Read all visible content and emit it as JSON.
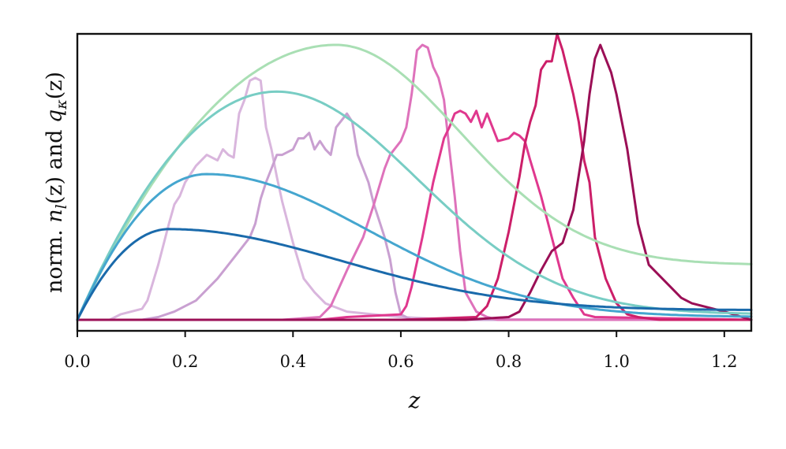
{
  "chart_data": {
    "type": "line",
    "title": "",
    "xlabel": "z",
    "ylabel": "norm. n_l(z) and q_κ(z)",
    "ylabel_parts": [
      "norm. ",
      "n",
      "l",
      "(z) and ",
      "q",
      "κ",
      "(z)"
    ],
    "xlim": [
      0.0,
      1.25
    ],
    "ylim": [
      -0.04,
      1.04
    ],
    "xticks": [
      0.0,
      0.2,
      0.4,
      0.6,
      0.8,
      1.0,
      1.2
    ],
    "xtick_labels": [
      "0.0",
      "0.2",
      "0.4",
      "0.6",
      "0.8",
      "1.0",
      "1.2"
    ],
    "yticks_visible": false,
    "grid": false,
    "legend": "none",
    "series": [
      {
        "kind": "lens",
        "color": "#d9b6dd",
        "x": [
          0,
          0.06,
          0.08,
          0.1,
          0.12,
          0.13,
          0.15,
          0.17,
          0.18,
          0.19,
          0.2,
          0.22,
          0.23,
          0.24,
          0.26,
          0.27,
          0.28,
          0.29,
          0.3,
          0.31,
          0.32,
          0.33,
          0.34,
          0.35,
          0.36,
          0.37,
          0.38,
          0.4,
          0.42,
          0.44,
          0.46,
          0.5,
          0.55,
          0.6,
          0.65,
          0.7,
          1.25
        ],
        "y": [
          0,
          0,
          0.02,
          0.03,
          0.04,
          0.07,
          0.2,
          0.35,
          0.42,
          0.45,
          0.5,
          0.56,
          0.58,
          0.6,
          0.58,
          0.62,
          0.6,
          0.59,
          0.75,
          0.8,
          0.87,
          0.88,
          0.87,
          0.7,
          0.62,
          0.52,
          0.43,
          0.28,
          0.15,
          0.1,
          0.06,
          0.03,
          0.02,
          0.01,
          0.005,
          0.002,
          0
        ]
      },
      {
        "kind": "lens",
        "color": "#c9a0d1",
        "x": [
          0,
          0.12,
          0.15,
          0.18,
          0.2,
          0.22,
          0.26,
          0.3,
          0.32,
          0.33,
          0.34,
          0.35,
          0.36,
          0.37,
          0.38,
          0.39,
          0.4,
          0.41,
          0.42,
          0.43,
          0.44,
          0.45,
          0.46,
          0.47,
          0.48,
          0.5,
          0.51,
          0.52,
          0.54,
          0.55,
          0.57,
          0.58,
          0.59,
          0.6,
          0.62,
          1.25
        ],
        "y": [
          0,
          0,
          0.01,
          0.03,
          0.05,
          0.07,
          0.15,
          0.25,
          0.3,
          0.35,
          0.44,
          0.5,
          0.55,
          0.6,
          0.6,
          0.61,
          0.62,
          0.66,
          0.66,
          0.68,
          0.62,
          0.65,
          0.62,
          0.6,
          0.7,
          0.75,
          0.72,
          0.6,
          0.5,
          0.42,
          0.3,
          0.22,
          0.1,
          0.02,
          0,
          0
        ]
      },
      {
        "kind": "lens",
        "color": "#de72bb",
        "x": [
          0,
          0.38,
          0.45,
          0.47,
          0.5,
          0.53,
          0.55,
          0.57,
          0.58,
          0.6,
          0.61,
          0.62,
          0.63,
          0.64,
          0.65,
          0.66,
          0.67,
          0.68,
          0.69,
          0.7,
          0.71,
          0.72,
          0.74,
          0.76,
          0.78,
          0.8,
          0.85,
          1.25
        ],
        "y": [
          0,
          0,
          0.01,
          0.05,
          0.18,
          0.3,
          0.42,
          0.55,
          0.6,
          0.65,
          0.7,
          0.82,
          0.98,
          1.0,
          0.99,
          0.92,
          0.88,
          0.8,
          0.62,
          0.45,
          0.25,
          0.1,
          0.03,
          0.01,
          0,
          0,
          0,
          0
        ]
      },
      {
        "kind": "lens",
        "color": "#e0388e",
        "x": [
          0,
          0.45,
          0.5,
          0.6,
          0.61,
          0.62,
          0.64,
          0.66,
          0.68,
          0.69,
          0.7,
          0.71,
          0.72,
          0.73,
          0.74,
          0.75,
          0.76,
          0.77,
          0.78,
          0.8,
          0.81,
          0.82,
          0.83,
          0.84,
          0.86,
          0.88,
          0.9,
          0.92,
          0.94,
          0.96,
          1.25
        ],
        "y": [
          0,
          0,
          0.01,
          0.02,
          0.05,
          0.12,
          0.3,
          0.5,
          0.66,
          0.7,
          0.75,
          0.76,
          0.75,
          0.72,
          0.76,
          0.7,
          0.75,
          0.7,
          0.65,
          0.66,
          0.68,
          0.67,
          0.65,
          0.58,
          0.45,
          0.3,
          0.15,
          0.08,
          0.02,
          0.01,
          0
        ]
      },
      {
        "kind": "lens",
        "color": "#cc1f69",
        "x": [
          0,
          0.6,
          0.74,
          0.76,
          0.78,
          0.8,
          0.82,
          0.83,
          0.84,
          0.85,
          0.86,
          0.87,
          0.88,
          0.89,
          0.9,
          0.91,
          0.92,
          0.93,
          0.94,
          0.95,
          0.96,
          0.98,
          1.0,
          1.02,
          1.04,
          1.06,
          1.08,
          1.1,
          1.12,
          1.25
        ],
        "y": [
          0,
          0,
          0.01,
          0.05,
          0.15,
          0.32,
          0.52,
          0.64,
          0.72,
          0.78,
          0.91,
          0.94,
          0.94,
          1.04,
          0.98,
          0.9,
          0.82,
          0.72,
          0.58,
          0.5,
          0.3,
          0.15,
          0.06,
          0.02,
          0.01,
          0.005,
          0,
          0,
          0,
          0
        ]
      },
      {
        "kind": "lens",
        "color": "#9b0f56",
        "x": [
          0,
          0.72,
          0.8,
          0.82,
          0.84,
          0.86,
          0.88,
          0.9,
          0.92,
          0.94,
          0.95,
          0.96,
          0.97,
          0.98,
          0.99,
          1.0,
          1.02,
          1.04,
          1.06,
          1.08,
          1.1,
          1.12,
          1.14,
          1.16,
          1.18,
          1.2,
          1.25
        ],
        "y": [
          0,
          0,
          0.01,
          0.03,
          0.1,
          0.18,
          0.25,
          0.28,
          0.4,
          0.65,
          0.82,
          0.95,
          1.0,
          0.95,
          0.9,
          0.82,
          0.62,
          0.35,
          0.2,
          0.16,
          0.12,
          0.08,
          0.06,
          0.05,
          0.04,
          0.03,
          0
        ]
      },
      {
        "kind": "kernel",
        "color": "#a9dfb4",
        "peak_z": 0.48,
        "peak": 1.0,
        "tail": 0.2
      },
      {
        "kind": "kernel",
        "color": "#78cdc4",
        "peak_z": 0.37,
        "peak": 0.83,
        "tail": 0.02
      },
      {
        "kind": "kernel",
        "color": "#45a6cf",
        "peak_z": 0.24,
        "peak": 0.53,
        "tail": 0.01
      },
      {
        "kind": "kernel",
        "color": "#1a6aab",
        "peak_z": 0.17,
        "peak": 0.33,
        "tail": 0.035
      }
    ]
  }
}
